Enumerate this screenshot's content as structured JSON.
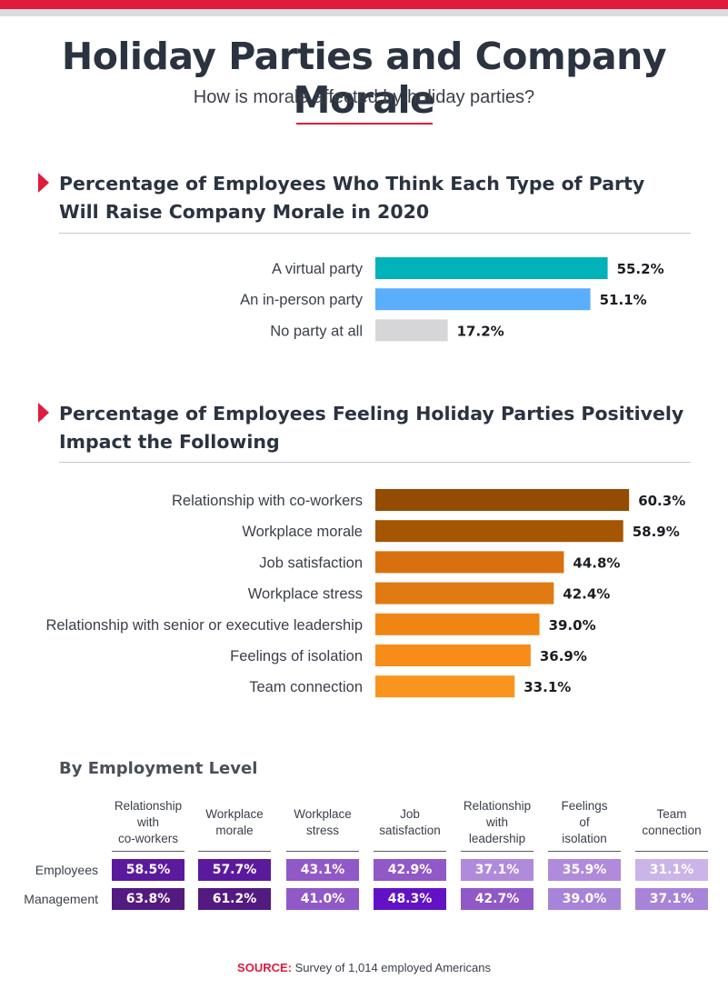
{
  "header": {
    "title": "Holiday Parties and Company Morale",
    "subtitle": "How is morale affected by holiday parties?"
  },
  "colors": {
    "accent": "#e01b3c",
    "virtual": "#00b2ba",
    "in_person": "#5aaefb",
    "no_party": "#d6d6d8"
  },
  "chart_data": [
    {
      "type": "bar",
      "orientation": "horizontal",
      "title": "Percentage of Employees Who Think Each Type of Party Will Raise Company Morale in 2020",
      "categories": [
        "A virtual party",
        "An in-person party",
        "No party at all"
      ],
      "values": [
        55.2,
        51.1,
        17.2
      ],
      "value_labels": [
        "55.2%",
        "51.1%",
        "17.2%"
      ],
      "colors": [
        "#00b2ba",
        "#5aaefb",
        "#d6d6d8"
      ],
      "xlim": [
        0,
        100
      ],
      "grid": false
    },
    {
      "type": "bar",
      "orientation": "horizontal",
      "title": "Percentage of Employees Feeling Holiday Parties Positively Impact the Following",
      "categories": [
        "Relationship with co-workers",
        "Workplace morale",
        "Job satisfaction",
        "Workplace stress",
        "Relationship with senior or executive leadership",
        "Feelings of isolation",
        "Team connection"
      ],
      "values": [
        60.3,
        58.9,
        44.8,
        42.4,
        39.0,
        36.9,
        33.1
      ],
      "value_labels": [
        "60.3%",
        "58.9%",
        "44.8%",
        "42.4%",
        "39.0%",
        "36.9%",
        "33.1%"
      ],
      "colors": [
        "#934c00",
        "#a55600",
        "#d97010",
        "#e07a12",
        "#ef8613",
        "#f78c18",
        "#f9951f"
      ],
      "xlim": [
        0,
        100
      ],
      "grid": false
    },
    {
      "type": "table",
      "title": "By Employment  Level",
      "columns": [
        [
          "Relationship",
          "with",
          "co-workers"
        ],
        [
          "Workplace",
          "morale"
        ],
        [
          "Workplace",
          "stress"
        ],
        [
          "Job",
          "satisfaction"
        ],
        [
          "Relationship",
          "with",
          "leadership"
        ],
        [
          "Feelings",
          "of",
          "isolation"
        ],
        [
          "Team",
          "connection"
        ]
      ],
      "rows": [
        {
          "label": "Employees",
          "values": [
            58.5,
            57.7,
            43.1,
            42.9,
            37.1,
            35.9,
            31.1
          ],
          "value_labels": [
            "58.5%",
            "57.7%",
            "43.1%",
            "42.9%",
            "37.1%",
            "35.9%",
            "31.1%"
          ],
          "colors": [
            "#5b1a9e",
            "#5b1a9e",
            "#9158c8",
            "#9158c8",
            "#b08adb",
            "#b08adb",
            "#cab4e8"
          ]
        },
        {
          "label": "Management",
          "values": [
            63.8,
            61.2,
            41.0,
            48.3,
            42.7,
            39.0,
            37.1
          ],
          "value_labels": [
            "63.8%",
            "61.2%",
            "41.0%",
            "48.3%",
            "42.7%",
            "39.0%",
            "37.1%"
          ],
          "colors": [
            "#531a80",
            "#531a80",
            "#9158c8",
            "#6212c4",
            "#9158c8",
            "#a884d8",
            "#a884d8"
          ]
        }
      ]
    }
  ],
  "footer": {
    "source_label": "SOURCE:",
    "source_text": " Survey of 1,014 employed Americans"
  }
}
